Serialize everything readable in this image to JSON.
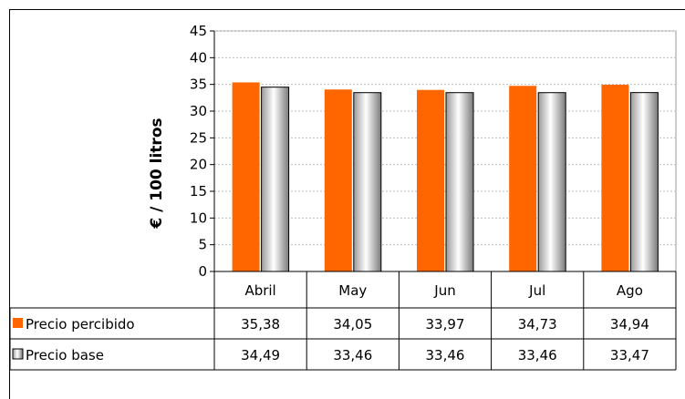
{
  "chart_data": {
    "type": "bar",
    "title": "",
    "xlabel": "",
    "ylabel": "€ / 100 litros",
    "ylim": [
      0,
      45
    ],
    "yticks": [
      0,
      5,
      10,
      15,
      20,
      25,
      30,
      35,
      40,
      45
    ],
    "grid": true,
    "legend": "data-table",
    "categories": [
      "Abril",
      "May",
      "Jun",
      "Jul",
      "Ago"
    ],
    "series": [
      {
        "name": "Precio percibido",
        "values": [
          35.38,
          34.05,
          33.97,
          34.73,
          34.94
        ],
        "labels": [
          "35,38",
          "34,05",
          "33,97",
          "34,73",
          "34,94"
        ],
        "color": "#ff6600"
      },
      {
        "name": "Precio base",
        "values": [
          34.49,
          33.46,
          33.46,
          33.46,
          33.47
        ],
        "labels": [
          "34,49",
          "33,46",
          "33,46",
          "33,46",
          "33,47"
        ],
        "color": "#c8c8c8"
      }
    ]
  }
}
